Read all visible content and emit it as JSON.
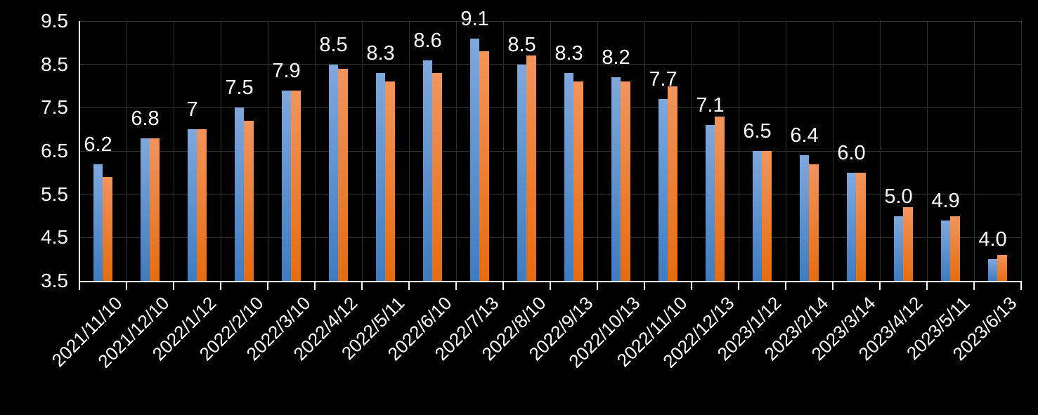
{
  "chart_data": {
    "type": "bar",
    "title": "",
    "xlabel": "",
    "ylabel": "",
    "legend_position": "none",
    "categories": [
      "2021/11/10",
      "2021/12/10",
      "2022/1/12",
      "2022/2/10",
      "2022/3/10",
      "2022/4/12",
      "2022/5/11",
      "2022/6/10",
      "2022/7/13",
      "2022/8/10",
      "2022/9/13",
      "2022/10/13",
      "2022/11/10",
      "2022/12/13",
      "2023/1/12",
      "2023/2/14",
      "2023/3/14",
      "2023/4/12",
      "2023/5/11",
      "2023/6/13"
    ],
    "series": [
      {
        "name": "blue",
        "color": "#5B9BD5",
        "gradient_top": "#7FA8DC",
        "gradient_bottom": "#3E7CC1",
        "values": [
          6.2,
          6.8,
          7,
          7.5,
          7.9,
          8.5,
          8.3,
          8.6,
          9.1,
          8.5,
          8.3,
          8.2,
          7.7,
          7.1,
          6.5,
          6.4,
          6.0,
          5.0,
          4.9,
          4.0
        ]
      },
      {
        "name": "orange",
        "color": "#ED7D31",
        "gradient_top": "#F2945C",
        "gradient_bottom": "#E66C0F",
        "values": [
          5.9,
          6.8,
          7.0,
          7.2,
          7.9,
          8.4,
          8.1,
          8.3,
          8.8,
          8.7,
          8.1,
          8.1,
          8.0,
          7.3,
          6.5,
          6.2,
          6.0,
          5.2,
          5.0,
          4.1
        ]
      }
    ],
    "data_labels": {
      "labeled_series": "blue",
      "values": [
        "6.2",
        "6.8",
        "7",
        "7.5",
        "7.9",
        "8.5",
        "8.3",
        "8.6",
        "9.1",
        "8.5",
        "8.3",
        "8.2",
        "7.7",
        "7.1",
        "6.5",
        "6.4",
        "6.0",
        "5.0",
        "4.9",
        "4.0"
      ]
    },
    "y_axis": {
      "min": 3.5,
      "max": 9.5,
      "step": 1,
      "tick_labels": [
        "9.5",
        "8.5",
        "7.5",
        "6.5",
        "5.5",
        "4.5",
        "3.5"
      ]
    },
    "x_axis": {
      "label_rotation_deg": -45,
      "ticks": "outside"
    },
    "grid": {
      "horizontal": true,
      "vertical": true
    },
    "colors": {
      "background": "#000000",
      "gridline": "#323232",
      "axis": "#FFFFFF",
      "text": "#FFFFFF"
    }
  }
}
